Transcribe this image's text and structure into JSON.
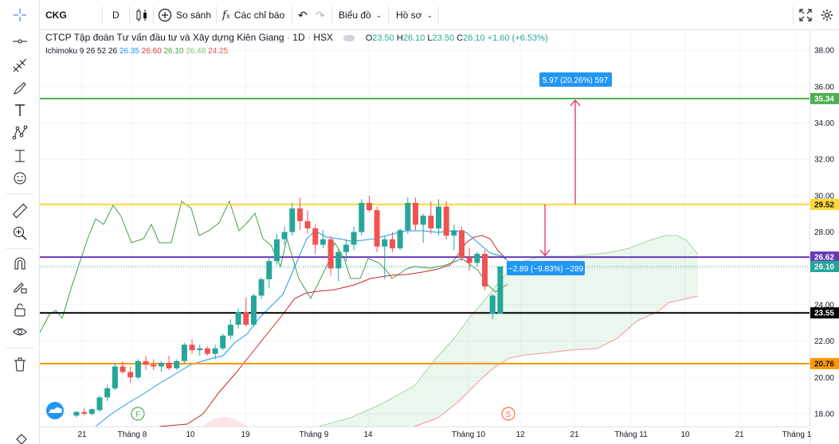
{
  "toolbar": {
    "symbol": "CKG",
    "interval": "D",
    "compare_label": "So sánh",
    "indicators_label": "Các chỉ báo",
    "chart_type_label": "Biểu đồ",
    "profile_label": "Hồ sơ"
  },
  "legend": {
    "title": "CTCP Tập đoàn Tư vấn đầu tư và Xây dựng Kiên Giang",
    "interval": "1D",
    "exchange": "HSX",
    "o_label": "O",
    "o": "23.50",
    "h_label": "H",
    "h": "26.10",
    "l_label": "L",
    "l": "23.50",
    "c_label": "C",
    "c": "26.10",
    "change": "+1.60 (+6.53%)",
    "ichimoku_label": "Ichimoku 9 26 52 26",
    "ichimoku_values": [
      "26.35",
      "26.60",
      "26.10",
      "26.48",
      "24.25"
    ],
    "ichimoku_colors": [
      "#2196f3",
      "#e53935",
      "#43a047",
      "#81c784",
      "#ef5350"
    ]
  },
  "price_axis": {
    "ticks": [
      "38.00",
      "36.00",
      "34.00",
      "32.00",
      "30.00",
      "28.00",
      "26.00",
      "24.00",
      "22.00",
      "20.00",
      "18.00"
    ],
    "badges": [
      {
        "value": "35.34",
        "color": "#4caf50"
      },
      {
        "value": "29.52",
        "color": "#fdd835"
      },
      {
        "value": "26.62",
        "color": "#673ab7"
      },
      {
        "value": "26.10",
        "color": "#26a69a"
      },
      {
        "value": "23.55",
        "color": "#000000"
      },
      {
        "value": "20.76",
        "color": "#ff9800"
      }
    ]
  },
  "time_axis": {
    "labels": [
      "21",
      "Tháng 8",
      "10",
      "19",
      "Tháng 9",
      "14",
      "Tháng 10",
      "12",
      "21",
      "Tháng 11",
      "10",
      "21",
      "Tháng 1"
    ]
  },
  "measure": {
    "up_label": "5.97 (20.26%) 597",
    "down_label": "−2.89 (−9.83%) −289"
  },
  "markers": {
    "f": "F",
    "s": "S"
  },
  "chart_data": {
    "type": "candlestick",
    "ylim": [
      17.3,
      39.1
    ],
    "horizontal_lines": [
      {
        "price": 35.34,
        "color": "#4caf50"
      },
      {
        "price": 29.52,
        "color": "#fdd835"
      },
      {
        "price": 26.62,
        "color": "#673ab7"
      },
      {
        "price": 23.55,
        "color": "#000000"
      },
      {
        "price": 20.76,
        "color": "#ff9800"
      }
    ],
    "candles": [
      [
        17.9,
        18.15,
        17.8,
        18.1
      ],
      [
        18.1,
        18.3,
        17.9,
        18.0
      ],
      [
        18.0,
        18.3,
        17.9,
        18.25
      ],
      [
        18.2,
        19.0,
        18.1,
        18.9
      ],
      [
        18.9,
        19.6,
        18.7,
        19.4
      ],
      [
        19.4,
        20.8,
        19.3,
        20.6
      ],
      [
        20.6,
        20.9,
        20.2,
        20.3
      ],
      [
        20.3,
        20.6,
        19.7,
        20.0
      ],
      [
        20.0,
        21.0,
        19.9,
        20.9
      ],
      [
        20.9,
        21.2,
        20.4,
        20.7
      ],
      [
        20.7,
        21.0,
        20.4,
        20.6
      ],
      [
        20.6,
        20.9,
        20.3,
        20.8
      ],
      [
        20.8,
        21.2,
        20.4,
        20.5
      ],
      [
        20.5,
        21.0,
        20.4,
        20.9
      ],
      [
        20.9,
        21.9,
        20.8,
        21.8
      ],
      [
        21.8,
        22.1,
        21.3,
        21.5
      ],
      [
        21.5,
        21.8,
        21.2,
        21.6
      ],
      [
        21.6,
        21.7,
        21.2,
        21.3
      ],
      [
        21.3,
        21.8,
        21.0,
        21.6
      ],
      [
        21.6,
        22.4,
        21.5,
        22.3
      ],
      [
        22.3,
        23.2,
        22.1,
        22.9
      ],
      [
        22.9,
        23.8,
        22.7,
        23.6
      ],
      [
        23.6,
        24.4,
        22.8,
        22.9
      ],
      [
        22.9,
        24.6,
        22.8,
        24.5
      ],
      [
        24.5,
        25.5,
        24.3,
        25.4
      ],
      [
        25.4,
        26.6,
        24.9,
        26.4
      ],
      [
        26.4,
        27.9,
        26.2,
        27.6
      ],
      [
        27.6,
        28.3,
        27.3,
        28.0
      ],
      [
        28.0,
        29.6,
        27.8,
        29.3
      ],
      [
        29.3,
        29.9,
        28.1,
        28.6
      ],
      [
        28.6,
        29.2,
        27.9,
        28.2
      ],
      [
        28.2,
        28.4,
        26.8,
        27.3
      ],
      [
        27.3,
        28.1,
        27.1,
        27.6
      ],
      [
        27.6,
        27.8,
        25.6,
        26.0
      ],
      [
        26.0,
        27.1,
        25.3,
        26.9
      ],
      [
        26.9,
        27.6,
        26.4,
        27.3
      ],
      [
        27.3,
        28.3,
        27.0,
        28.0
      ],
      [
        28.0,
        29.8,
        27.8,
        29.6
      ],
      [
        29.6,
        30.0,
        29.1,
        29.2
      ],
      [
        29.2,
        29.4,
        26.9,
        27.2
      ],
      [
        27.2,
        27.8,
        25.4,
        27.6
      ],
      [
        27.6,
        28.0,
        26.9,
        27.1
      ],
      [
        27.1,
        28.2,
        27.0,
        28.1
      ],
      [
        28.1,
        29.9,
        27.9,
        29.6
      ],
      [
        29.6,
        29.9,
        28.1,
        28.4
      ],
      [
        28.4,
        29.0,
        27.4,
        28.9
      ],
      [
        28.9,
        29.7,
        27.9,
        28.2
      ],
      [
        28.2,
        29.8,
        27.8,
        29.4
      ],
      [
        29.4,
        29.7,
        27.6,
        27.8
      ],
      [
        27.8,
        28.4,
        27.0,
        28.1
      ],
      [
        28.1,
        28.3,
        26.4,
        26.6
      ],
      [
        26.6,
        27.1,
        25.9,
        26.3
      ],
      [
        26.3,
        26.9,
        26.1,
        26.8
      ],
      [
        26.8,
        27.0,
        24.8,
        25.0
      ],
      [
        23.5,
        24.6,
        23.2,
        24.5
      ],
      [
        23.5,
        26.1,
        23.5,
        26.1
      ]
    ]
  }
}
